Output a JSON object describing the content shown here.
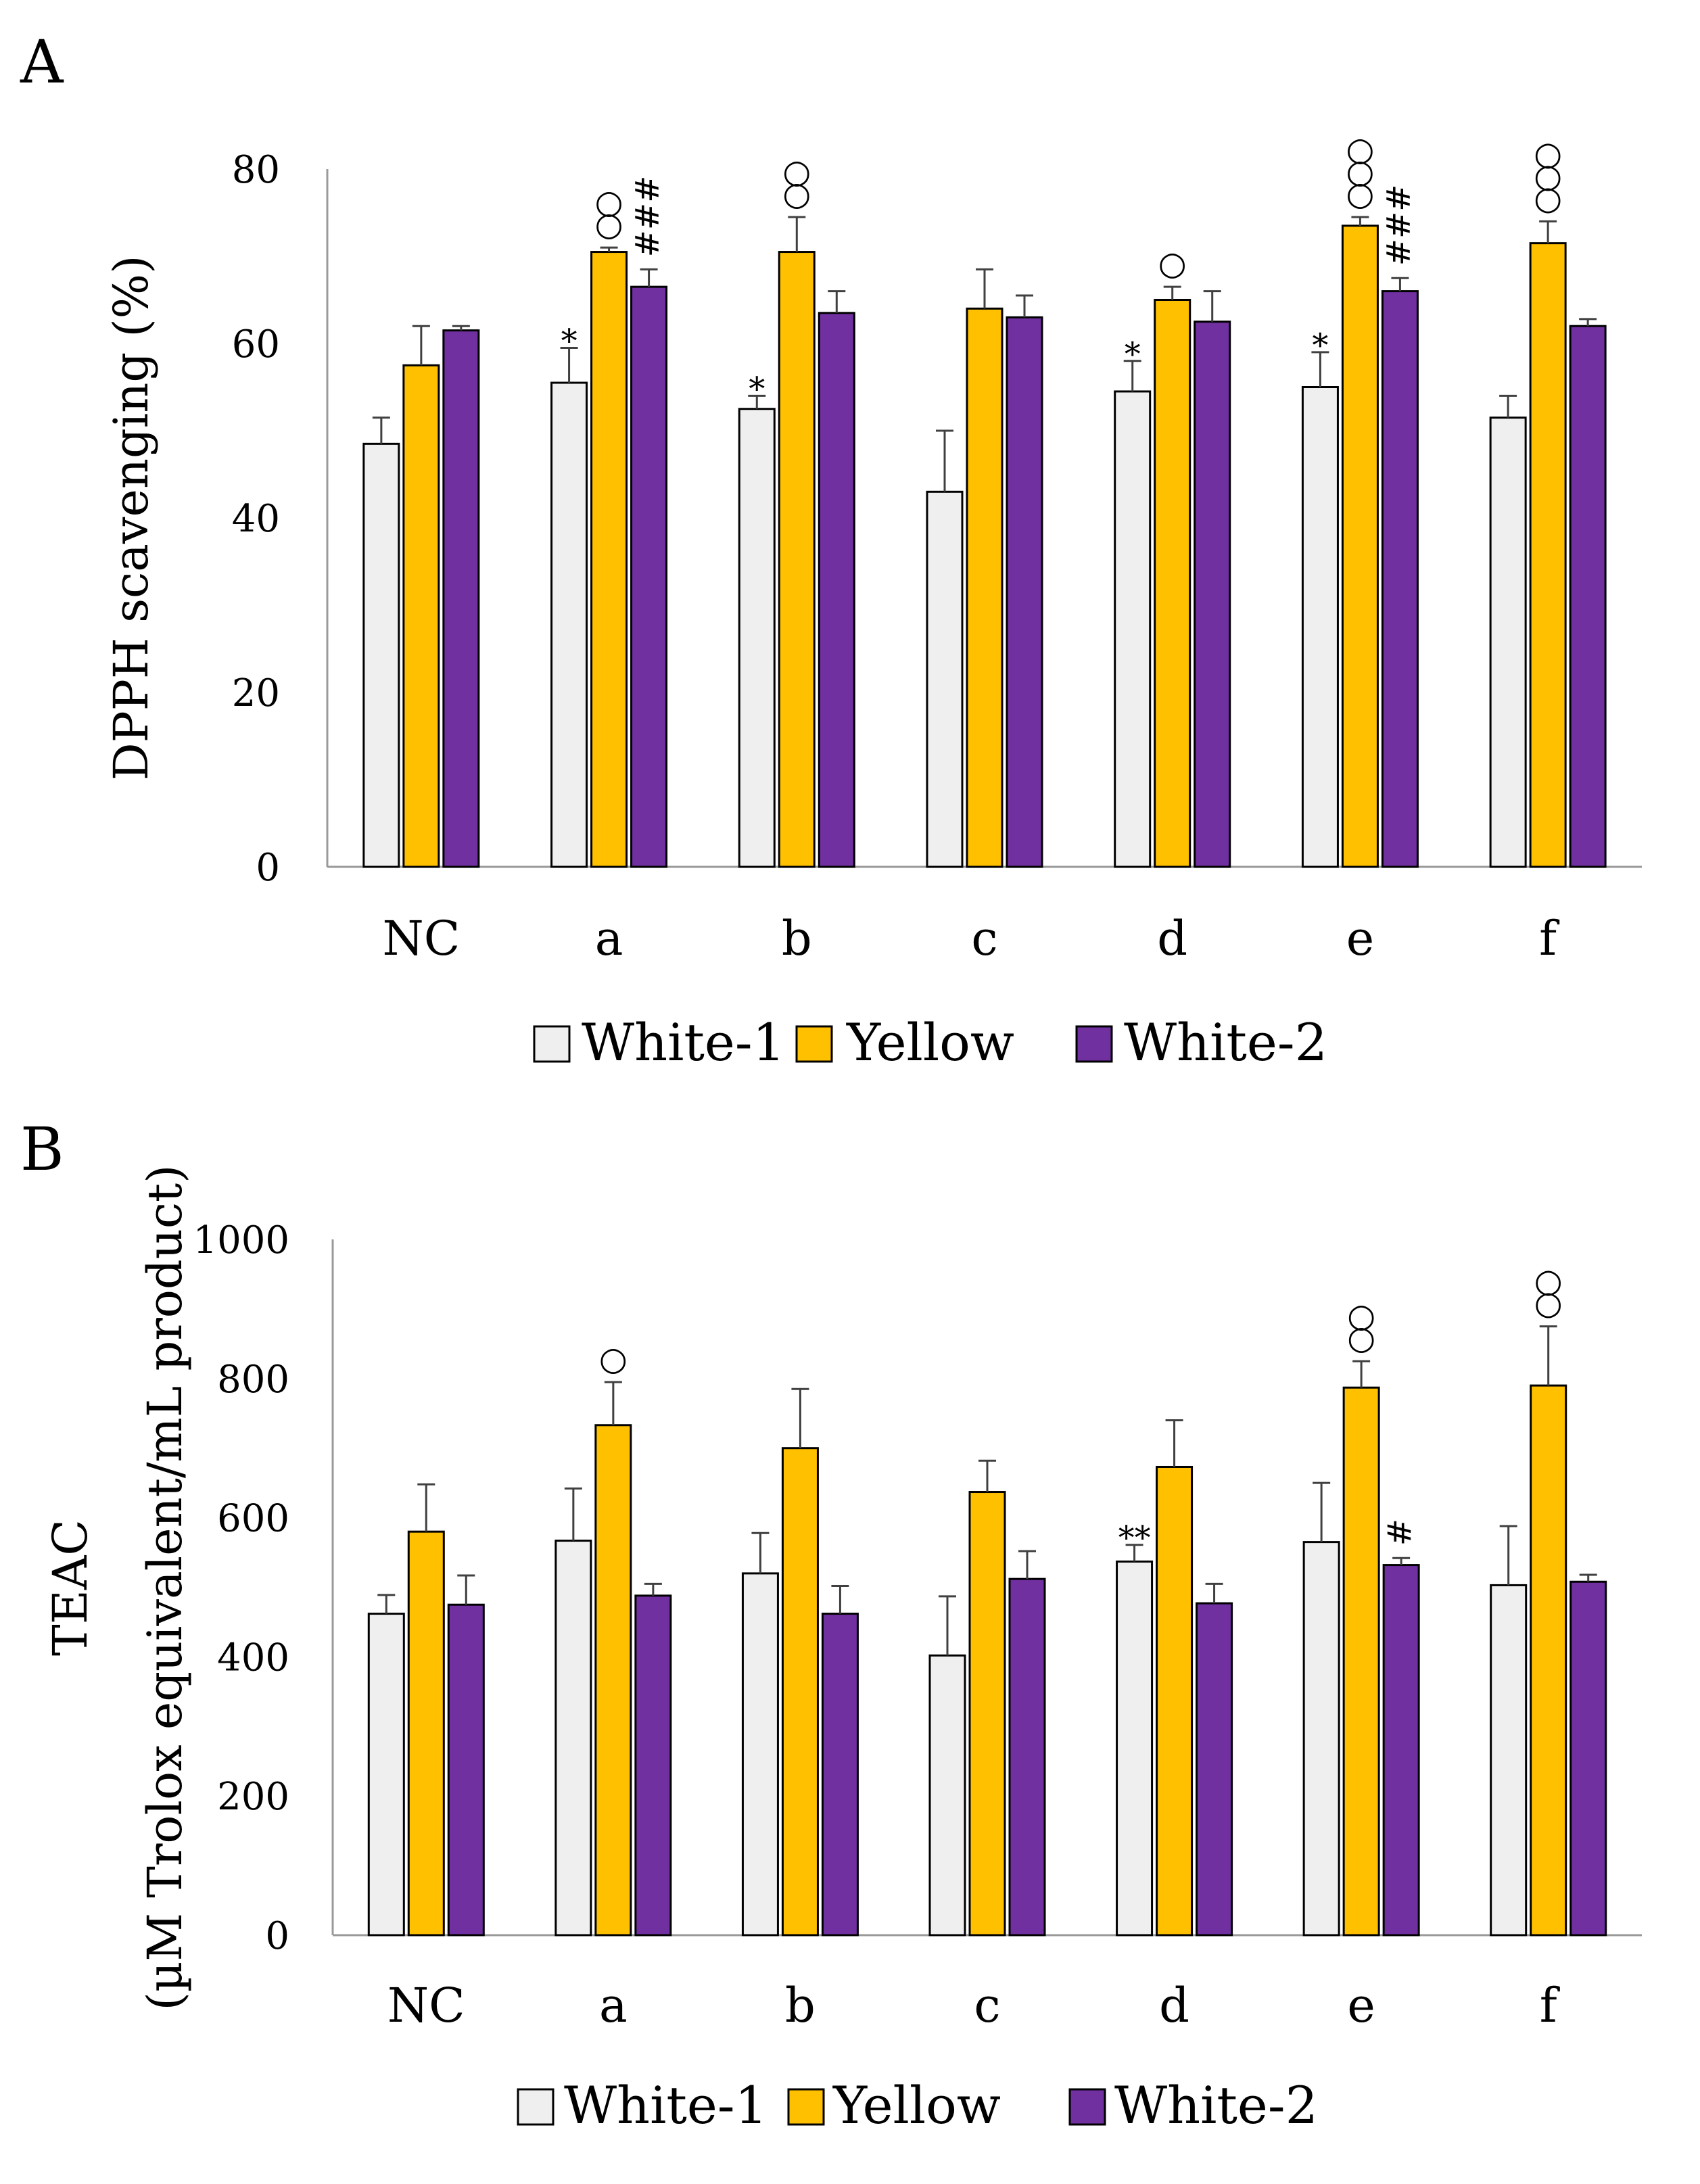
{
  "colors": {
    "White-1": "#efefef",
    "Yellow": "#ffc000",
    "White-2": "#7030a0",
    "stroke": "#000000",
    "errorbar": "#404040"
  },
  "chart_data": [
    {
      "type": "bar",
      "panel_label": "A",
      "ylabel": "DPPH scavenging (%)",
      "ylabel_lines": [
        "DPPH scavenging (%)"
      ],
      "ylim": [
        0,
        80
      ],
      "yticks": [
        0,
        20,
        40,
        60,
        80
      ],
      "ytick_labels": [
        "0",
        "20",
        "40",
        "60",
        "80"
      ],
      "categories": [
        "NC",
        "a",
        "b",
        "c",
        "d",
        "e",
        "f"
      ],
      "legend": [
        "White-1",
        "Yellow",
        "White-2"
      ],
      "series": [
        {
          "name": "White-1",
          "values": [
            48.5,
            55.5,
            52.5,
            43,
            54.5,
            55,
            51.5
          ],
          "errors": [
            3,
            4,
            1.5,
            7,
            3.5,
            4,
            2.5
          ]
        },
        {
          "name": "Yellow",
          "values": [
            57.5,
            70.5,
            70.5,
            64,
            65,
            73.5,
            71.5
          ],
          "errors": [
            4.5,
            0.5,
            4,
            4.5,
            1.5,
            1,
            2.5
          ]
        },
        {
          "name": "White-2",
          "values": [
            61.5,
            66.5,
            63.5,
            63,
            62.5,
            66,
            62
          ],
          "errors": [
            0.5,
            2,
            2.5,
            2.5,
            3.5,
            1.5,
            0.8
          ]
        }
      ],
      "annotations": [
        {
          "category": "a",
          "series": "White-1",
          "text": "*"
        },
        {
          "category": "b",
          "series": "White-1",
          "text": "*"
        },
        {
          "category": "d",
          "series": "White-1",
          "text": "*"
        },
        {
          "category": "e",
          "series": "White-1",
          "text": "*"
        },
        {
          "category": "a",
          "series": "Yellow",
          "text": "○○",
          "stacked": true
        },
        {
          "category": "b",
          "series": "Yellow",
          "text": "○○",
          "stacked": true
        },
        {
          "category": "d",
          "series": "Yellow",
          "text": "○",
          "stacked": true
        },
        {
          "category": "e",
          "series": "Yellow",
          "text": "○○○",
          "stacked": true
        },
        {
          "category": "f",
          "series": "Yellow",
          "text": "○○○",
          "stacked": true
        },
        {
          "category": "a",
          "series": "White-2",
          "text": "###",
          "rotated": true
        },
        {
          "category": "e",
          "series": "White-2",
          "text": "###",
          "rotated": true
        }
      ]
    },
    {
      "type": "bar",
      "panel_label": "B",
      "ylabel": "TEAC (µM Trolox equivalent/mL product)",
      "ylabel_lines": [
        "TEAC",
        "(µM Trolox equivalent/mL product)"
      ],
      "ylim": [
        0,
        1000
      ],
      "yticks": [
        0,
        200,
        400,
        600,
        800,
        1000
      ],
      "ytick_labels": [
        "0",
        "200",
        "400",
        "600",
        "800",
        "1000"
      ],
      "categories": [
        "NC",
        "a",
        "b",
        "c",
        "d",
        "e",
        "f"
      ],
      "legend": [
        "White-1",
        "Yellow",
        "White-2"
      ],
      "series": [
        {
          "name": "White-1",
          "values": [
            462,
            567,
            520,
            402,
            537,
            565,
            503
          ],
          "errors": [
            27,
            75,
            58,
            85,
            24,
            85,
            85
          ]
        },
        {
          "name": "Yellow",
          "values": [
            580,
            733,
            700,
            637,
            673,
            787,
            790
          ],
          "errors": [
            68,
            62,
            85,
            45,
            67,
            38,
            85
          ]
        },
        {
          "name": "White-2",
          "values": [
            475,
            488,
            462,
            512,
            477,
            532,
            508
          ],
          "errors": [
            42,
            17,
            40,
            40,
            28,
            10,
            10
          ]
        }
      ],
      "annotations": [
        {
          "category": "d",
          "series": "White-1",
          "text": "**"
        },
        {
          "category": "a",
          "series": "Yellow",
          "text": "○",
          "stacked": true
        },
        {
          "category": "e",
          "series": "Yellow",
          "text": "○○",
          "stacked": true
        },
        {
          "category": "f",
          "series": "Yellow",
          "text": "○○",
          "stacked": true
        },
        {
          "category": "e",
          "series": "White-2",
          "text": "#",
          "rotated": true
        }
      ]
    }
  ]
}
